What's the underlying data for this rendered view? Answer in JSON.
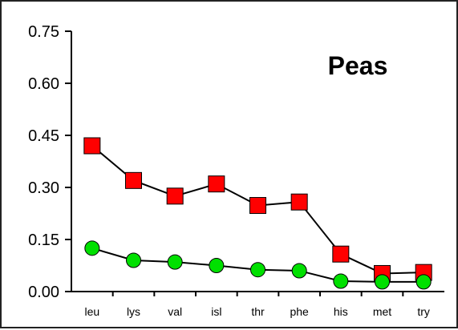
{
  "chart_data": {
    "type": "line",
    "title": "Peas",
    "xlabel": "",
    "ylabel": "",
    "categories": [
      "leu",
      "lys",
      "val",
      "isl",
      "thr",
      "phe",
      "his",
      "met",
      "try"
    ],
    "ylim": [
      0,
      0.75
    ],
    "yticks": [
      0.0,
      0.15,
      0.3,
      0.45,
      0.6,
      0.75
    ],
    "ytick_labels": [
      "0.00",
      "0.15",
      "0.30",
      "0.45",
      "0.60",
      "0.75"
    ],
    "grid": false,
    "series": [
      {
        "marker": "square",
        "color": "#ff0000",
        "values": [
          0.42,
          0.32,
          0.275,
          0.31,
          0.248,
          0.258,
          0.108,
          0.052,
          0.055
        ]
      },
      {
        "marker": "circle",
        "color": "#00e000",
        "values": [
          0.125,
          0.09,
          0.085,
          0.075,
          0.063,
          0.06,
          0.03,
          0.028,
          0.028
        ]
      }
    ]
  }
}
